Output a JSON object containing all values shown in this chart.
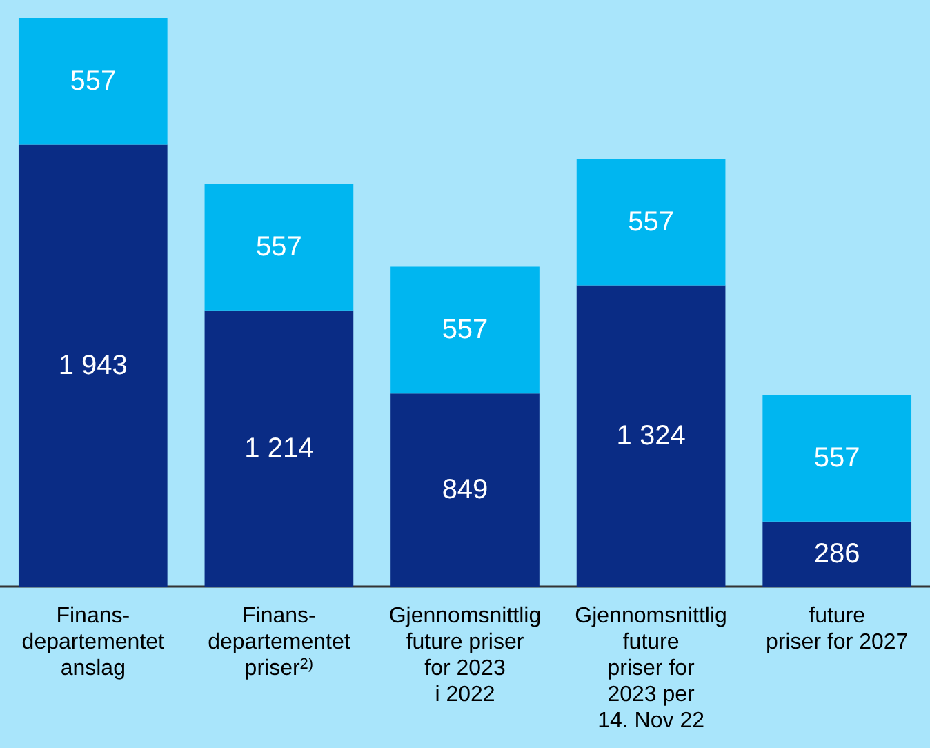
{
  "chart_data": {
    "type": "bar",
    "stacked": true,
    "categories": [
      "Finans-\ndepartementet\nanslag",
      "Finans-\ndepartementet\npriser$^{2)}$",
      "Gjennomsnittlig\nfuture priser\nfor 2023\ni 2022",
      "Gjennomsnittlig\nfuture\npriser for\n2023 per\n14. Nov 22",
      "future\npriser for 2027"
    ],
    "series": [
      {
        "color": "#0a2c85",
        "values": [
          1943,
          1214,
          849,
          1324,
          286
        ],
        "value_labels": [
          "1 943",
          "1 214",
          "849",
          "1 324",
          "286"
        ]
      },
      {
        "color": "#00b6f0",
        "values": [
          557,
          557,
          557,
          557,
          557
        ],
        "value_labels": [
          "557",
          "557",
          "557",
          "557",
          "557"
        ]
      }
    ]
  }
}
